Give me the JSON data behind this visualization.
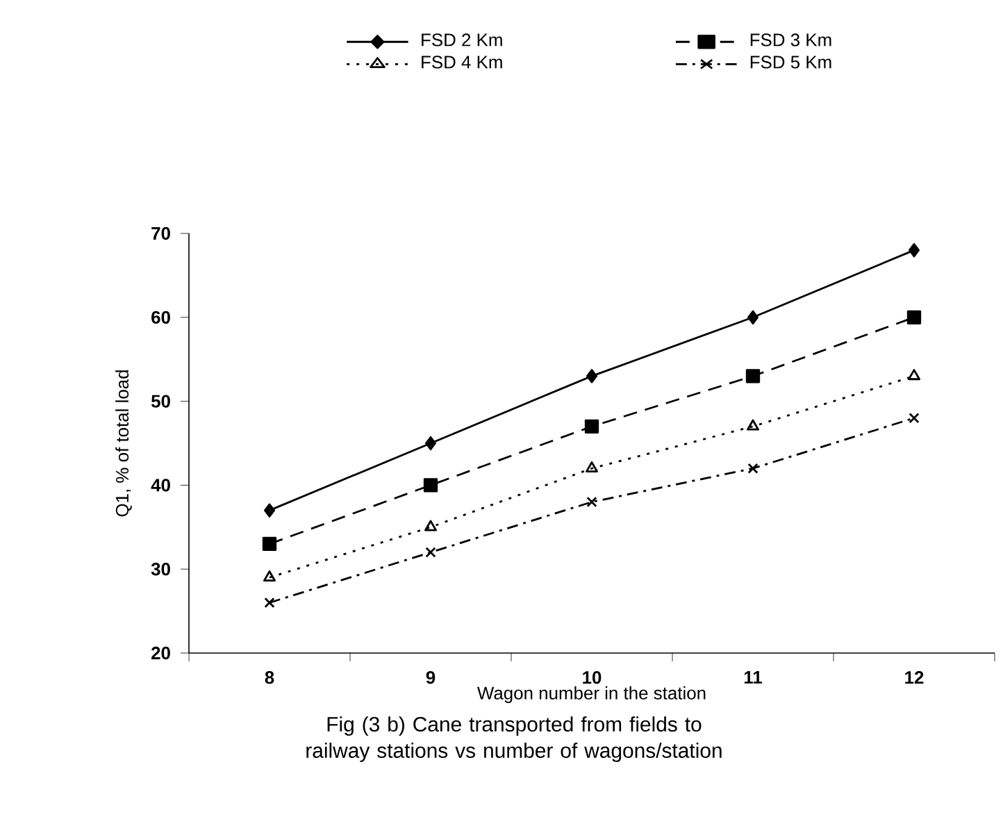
{
  "chart_data": {
    "type": "line",
    "xlabel": "Wagon number in the station",
    "ylabel": "Q1, % of total load",
    "categories": [
      "8",
      "9",
      "10",
      "11",
      "12"
    ],
    "series": [
      {
        "name": "FSD 2 Km",
        "color": "#000000",
        "marker": "diamond",
        "line_style": "solid",
        "values": [
          37,
          45,
          53,
          60,
          68
        ]
      },
      {
        "name": "FSD 3 Km",
        "color": "#000000",
        "marker": "square",
        "line_style": "dashed",
        "values": [
          33,
          40,
          47,
          53,
          60
        ]
      },
      {
        "name": "FSD 4 Km",
        "color": "#000000",
        "marker": "triangle",
        "line_style": "dotted",
        "values": [
          29,
          35,
          42,
          47,
          53
        ]
      },
      {
        "name": "FSD 5 Km",
        "color": "#000000",
        "marker": "cross",
        "line_style": "dashdot",
        "values": [
          26,
          32,
          38,
          42,
          48
        ]
      }
    ],
    "ylim": [
      20,
      70
    ],
    "yticks": [
      20,
      30,
      40,
      50,
      60,
      70
    ],
    "grid": false,
    "legend": "top",
    "annotations": [
      "Fig (3 b) Cane transported from fields to railway stations vs number of wagons/station"
    ]
  }
}
